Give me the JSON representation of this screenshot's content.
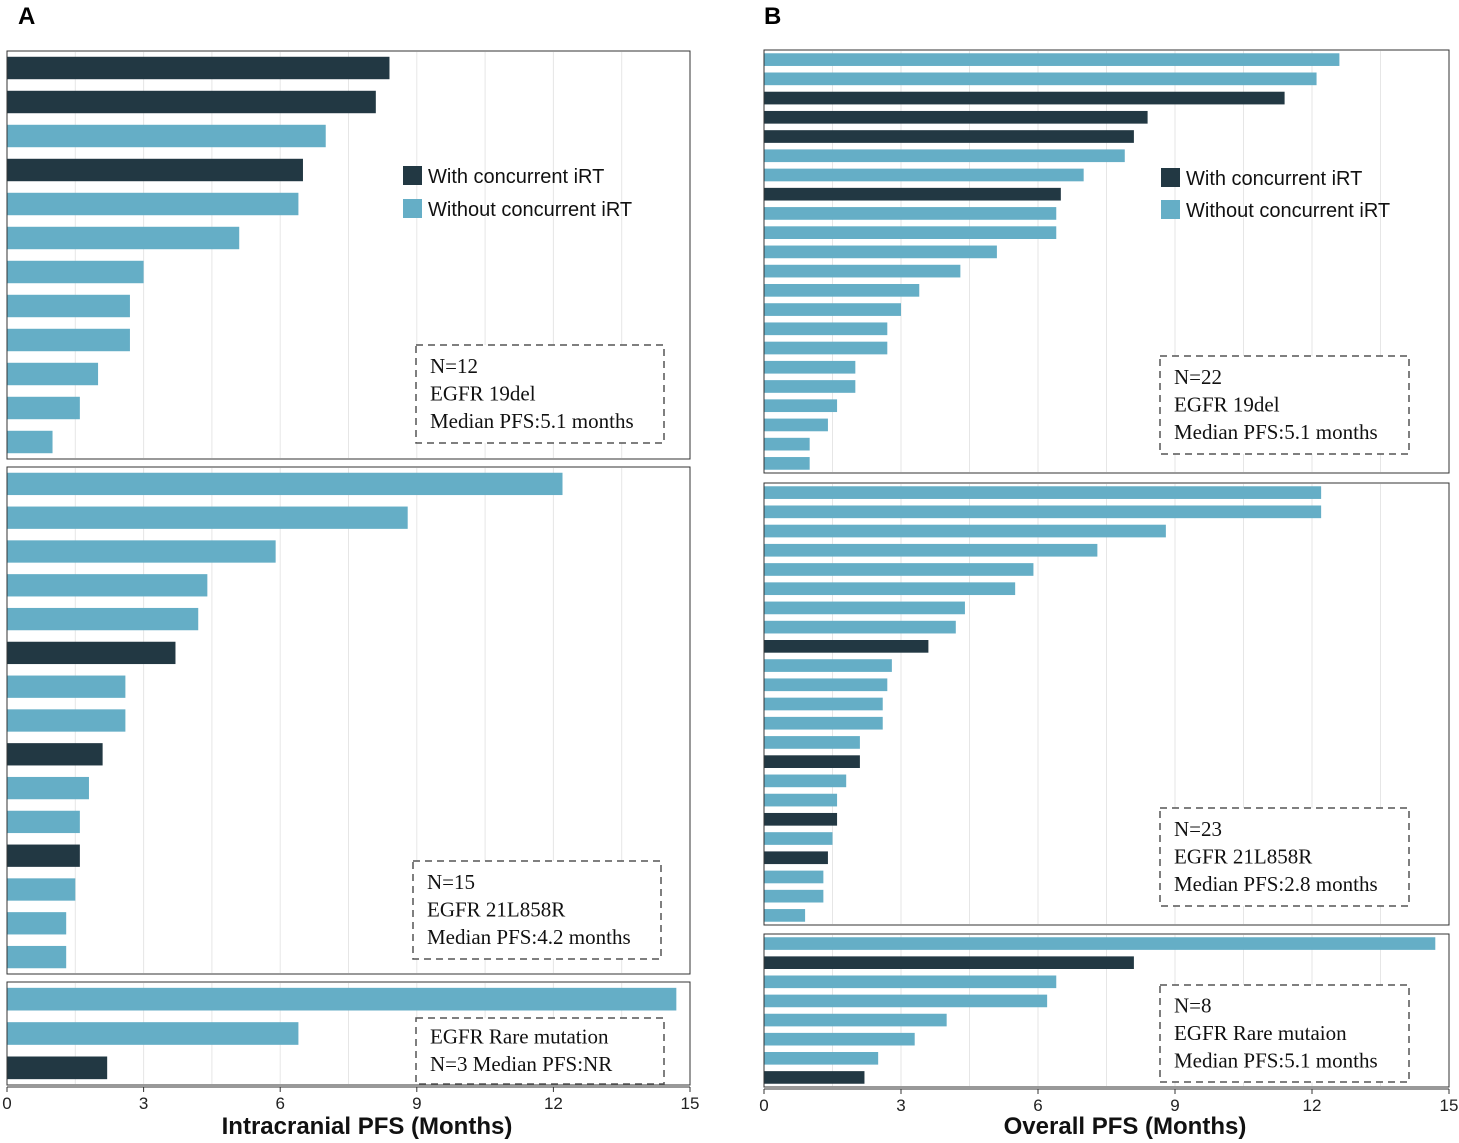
{
  "colors": {
    "with_irt": "#223843",
    "without_irt": "#65AEC6"
  },
  "chart_data": [
    {
      "type": "bar",
      "orientation": "horizontal",
      "panel_label": "A",
      "xlabel": "Intracranial PFS (Months)",
      "xlim": [
        0,
        15
      ],
      "xticks": [
        "0",
        "3",
        "6",
        "9",
        "12",
        "15"
      ],
      "legend": {
        "with": "With concurrent iRT",
        "without": "Without concurrent iRT"
      },
      "subpanels": [
        {
          "annotation": [
            "N=12",
            "EGFR 19del",
            "Median PFS:5.1 months"
          ],
          "values": [
            8.4,
            8.1,
            7.0,
            6.5,
            6.4,
            5.1,
            3.0,
            2.7,
            2.7,
            2.0,
            1.6,
            1.0
          ],
          "groups": [
            "with",
            "with",
            "without",
            "with",
            "without",
            "without",
            "without",
            "without",
            "without",
            "without",
            "without",
            "without"
          ]
        },
        {
          "annotation": [
            "N=15",
            "EGFR 21L858R",
            "Median PFS:4.2 months"
          ],
          "values": [
            12.2,
            8.8,
            5.9,
            4.4,
            4.2,
            3.7,
            2.6,
            2.6,
            2.1,
            1.8,
            1.6,
            1.6,
            1.5,
            1.3,
            1.3
          ],
          "groups": [
            "without",
            "without",
            "without",
            "without",
            "without",
            "with",
            "without",
            "without",
            "with",
            "without",
            "without",
            "with",
            "without",
            "without",
            "without"
          ]
        },
        {
          "annotation": [
            "EGFR Rare mutation",
            "N=3 Median PFS:NR"
          ],
          "values": [
            14.7,
            6.4,
            2.2
          ],
          "groups": [
            "without",
            "without",
            "with"
          ]
        }
      ]
    },
    {
      "type": "bar",
      "orientation": "horizontal",
      "panel_label": "B",
      "xlabel": "Overall PFS (Months)",
      "xlim": [
        0,
        15
      ],
      "xticks": [
        "0",
        "3",
        "6",
        "9",
        "12",
        "15"
      ],
      "legend": {
        "with": "With concurrent iRT",
        "without": "Without concurrent iRT"
      },
      "subpanels": [
        {
          "annotation": [
            "N=22",
            "EGFR 19del",
            "Median PFS:5.1 months"
          ],
          "values": [
            12.6,
            12.1,
            11.4,
            8.4,
            8.1,
            7.9,
            7.0,
            6.5,
            6.4,
            6.4,
            5.1,
            4.3,
            3.4,
            3.0,
            2.7,
            2.7,
            2.0,
            2.0,
            1.6,
            1.4,
            1.0,
            1.0
          ],
          "groups": [
            "without",
            "without",
            "with",
            "with",
            "with",
            "without",
            "without",
            "with",
            "without",
            "without",
            "without",
            "without",
            "without",
            "without",
            "without",
            "without",
            "without",
            "without",
            "without",
            "without",
            "without",
            "without"
          ]
        },
        {
          "annotation": [
            "N=23",
            "EGFR 21L858R",
            "Median PFS:2.8 months"
          ],
          "values": [
            12.2,
            12.2,
            8.8,
            7.3,
            5.9,
            5.5,
            4.4,
            4.2,
            3.6,
            2.8,
            2.7,
            2.6,
            2.6,
            2.1,
            2.1,
            1.8,
            1.6,
            1.6,
            1.5,
            1.4,
            1.3,
            1.3,
            0.9
          ],
          "groups": [
            "without",
            "without",
            "without",
            "without",
            "without",
            "without",
            "without",
            "without",
            "with",
            "without",
            "without",
            "without",
            "without",
            "without",
            "with",
            "without",
            "without",
            "with",
            "without",
            "with",
            "without",
            "without",
            "without"
          ]
        },
        {
          "annotation": [
            "N=8",
            "EGFR Rare mutaion",
            "Median PFS:5.1 months"
          ],
          "values": [
            14.7,
            8.1,
            6.4,
            6.2,
            4.0,
            3.3,
            2.5,
            2.2
          ],
          "groups": [
            "without",
            "with",
            "without",
            "without",
            "without",
            "without",
            "without",
            "with"
          ]
        }
      ]
    }
  ]
}
